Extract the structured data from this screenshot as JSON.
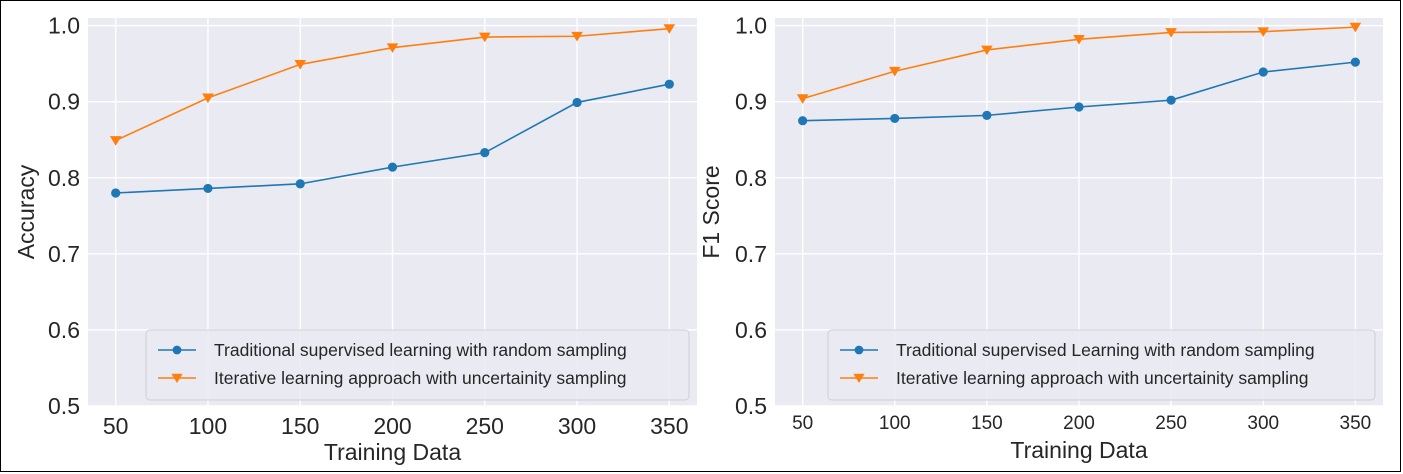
{
  "chart_data": [
    {
      "type": "line",
      "xlabel": "Training Data",
      "ylabel": "Accuracy",
      "x": [
        50,
        100,
        150,
        200,
        250,
        300,
        350
      ],
      "x_ticks": [
        "50",
        "100",
        "150",
        "200",
        "250",
        "300",
        "350"
      ],
      "y_ticks": [
        "0.5",
        "0.6",
        "0.7",
        "0.8",
        "0.9",
        "1.0"
      ],
      "ylim": [
        0.5,
        1.01
      ],
      "grid": true,
      "legend_position": "lower-right",
      "series": [
        {
          "name": "Traditional supervised learning with random sampling",
          "color": "#1f77b4",
          "marker": "circle",
          "values": [
            0.78,
            0.786,
            0.792,
            0.814,
            0.833,
            0.899,
            0.923
          ]
        },
        {
          "name": "Iterative learning approach with uncertainity sampling",
          "color": "#ff7f0e",
          "marker": "triangle-down",
          "values": [
            0.849,
            0.905,
            0.949,
            0.971,
            0.985,
            0.986,
            0.996
          ]
        }
      ]
    },
    {
      "type": "line",
      "xlabel": "Training Data",
      "ylabel": "F1 Score",
      "x": [
        50,
        100,
        150,
        200,
        250,
        300,
        350
      ],
      "x_ticks": [
        "50",
        "100",
        "150",
        "200",
        "250",
        "300",
        "350"
      ],
      "y_ticks": [
        "0.5",
        "0.6",
        "0.7",
        "0.8",
        "0.9",
        "1.0"
      ],
      "ylim": [
        0.5,
        1.01
      ],
      "grid": true,
      "legend_position": "lower-right",
      "series": [
        {
          "name": "Traditional supervised Learning with random sampling",
          "color": "#1f77b4",
          "marker": "circle",
          "values": [
            0.875,
            0.878,
            0.882,
            0.893,
            0.902,
            0.939,
            0.952
          ]
        },
        {
          "name": "Iterative learning approach with uncertainity sampling",
          "color": "#ff7f0e",
          "marker": "triangle-down",
          "values": [
            0.904,
            0.94,
            0.968,
            0.982,
            0.991,
            0.992,
            0.998
          ]
        }
      ]
    }
  ]
}
